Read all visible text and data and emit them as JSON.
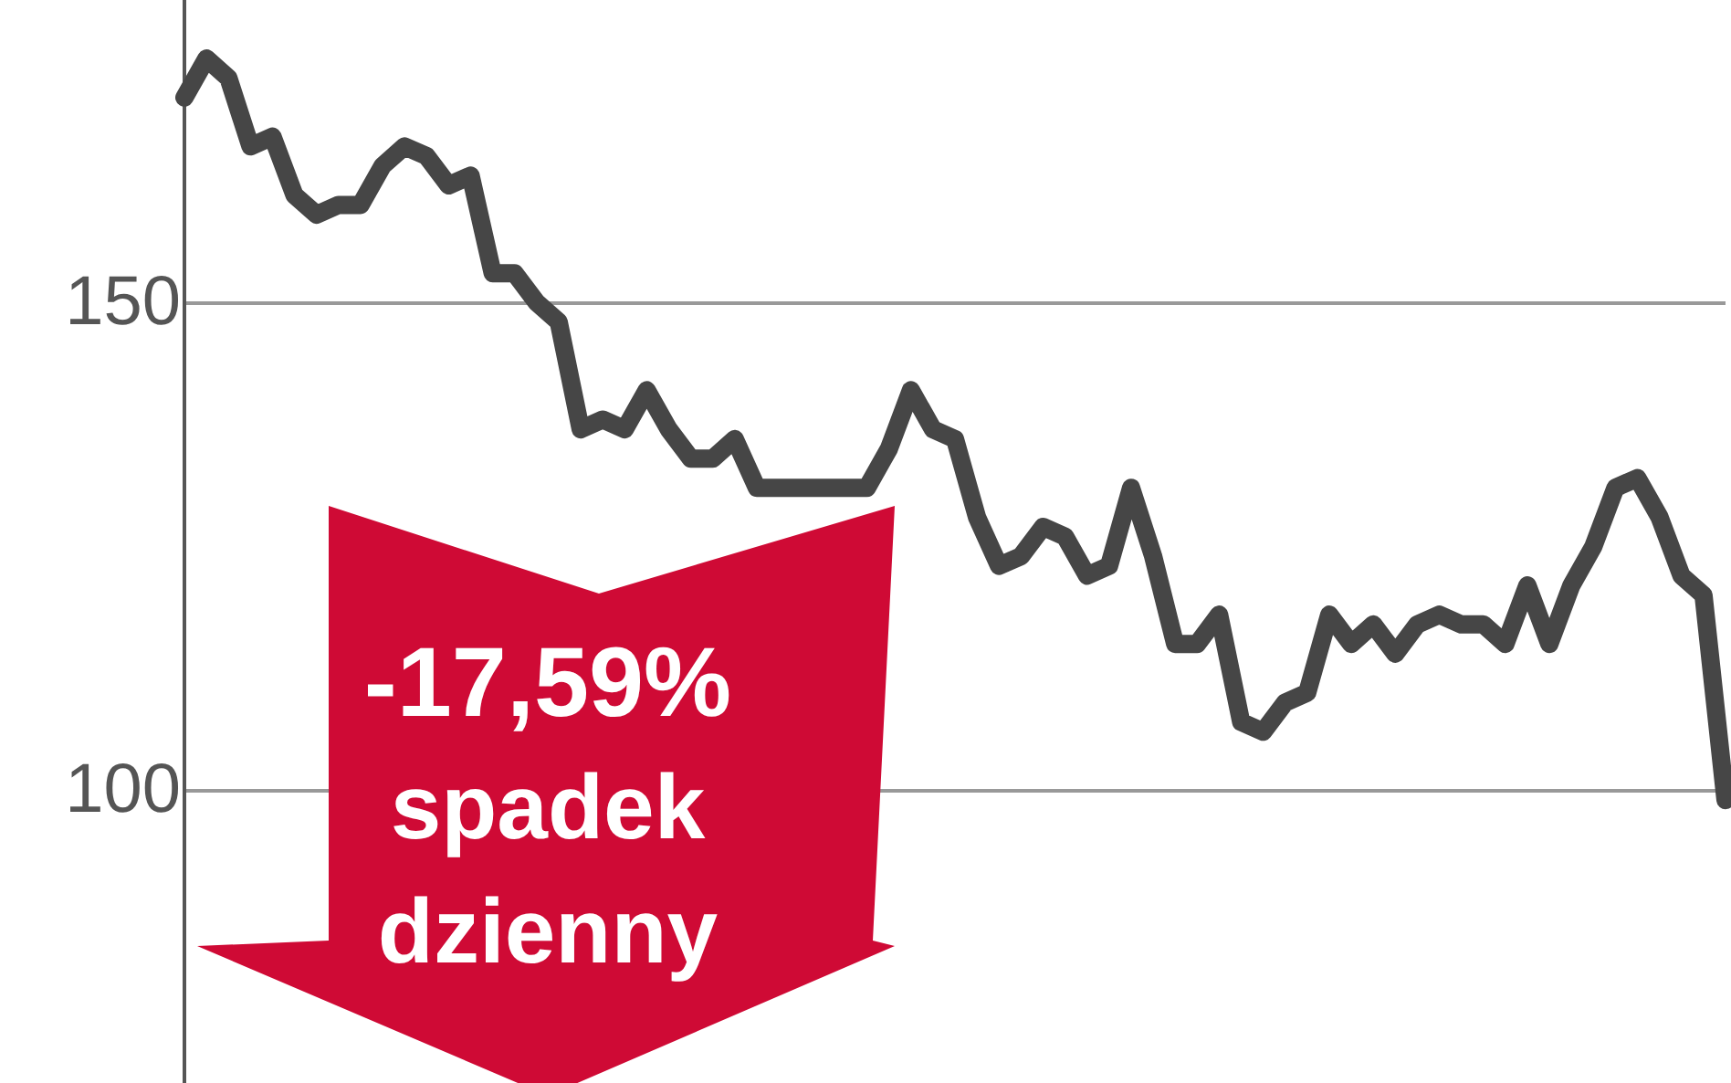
{
  "chart_data": {
    "type": "line",
    "categories": [
      null,
      null,
      null,
      null,
      null,
      null,
      null,
      null,
      null,
      null,
      null,
      null,
      null,
      null,
      null,
      null,
      null,
      null,
      null,
      null,
      null,
      null,
      null,
      null,
      null,
      null,
      null,
      null,
      null,
      null,
      null,
      null,
      null,
      null,
      null,
      null,
      null,
      null,
      null,
      null,
      null,
      null,
      null,
      null,
      null,
      null,
      null,
      null,
      null,
      null,
      null,
      null,
      null,
      null,
      null,
      null,
      null,
      null,
      null,
      null,
      null,
      null,
      null,
      null,
      null,
      null,
      null,
      null,
      null,
      null,
      null
    ],
    "series": [
      {
        "color": "#464646",
        "values": [
          171,
          175,
          173,
          166,
          167,
          161,
          159,
          160,
          160,
          164,
          166,
          165,
          162,
          163,
          153,
          153,
          150,
          148,
          137,
          138,
          137,
          141,
          137,
          134,
          134,
          136,
          131,
          null,
          null,
          null,
          null,
          131,
          135,
          141,
          137,
          136,
          128,
          123,
          124,
          127,
          126,
          122,
          123,
          131,
          124,
          115,
          115,
          118,
          107,
          106,
          109,
          110,
          118,
          115,
          117,
          114,
          117,
          118,
          117,
          117,
          115,
          121,
          115,
          121,
          125,
          131,
          132,
          128,
          122,
          120,
          99
        ]
      }
    ],
    "ylim": [
      70,
      181
    ],
    "yticks": [
      100,
      150
    ],
    "grid": "y",
    "line_style": "solid",
    "tick_labels": "y",
    "annotations": [
      "-17,59%",
      "spadek",
      "dzienny"
    ]
  }
}
